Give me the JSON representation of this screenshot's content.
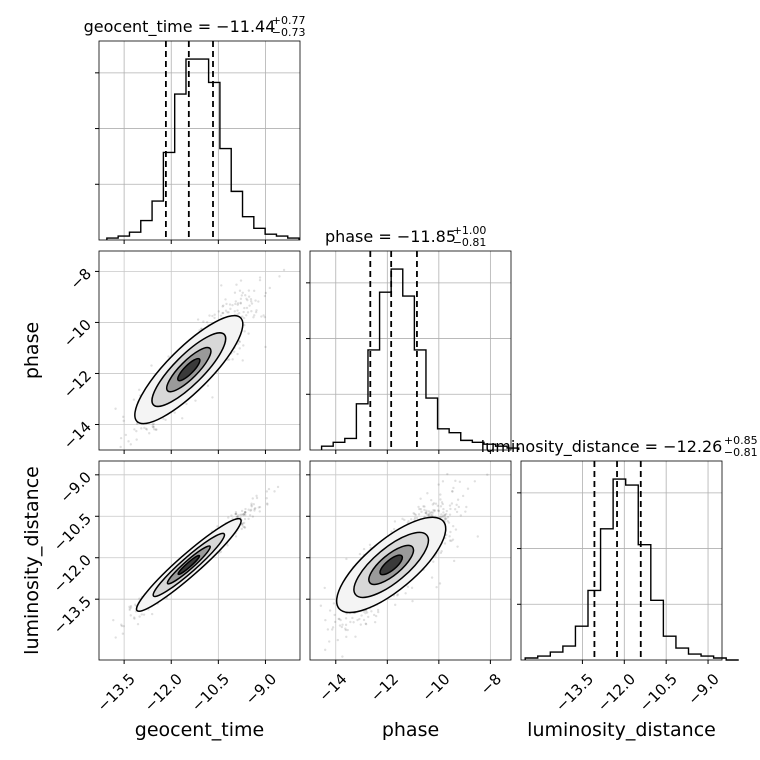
{
  "chart_data": {
    "type": "corner",
    "parameters": [
      {
        "name": "geocent_time",
        "title_prefix": "geocent_time = ",
        "median_text": "−11.44",
        "plus_text": "+0.77",
        "minus_text": "−0.73",
        "median": -11.44,
        "lower": -12.17,
        "upper": -10.67,
        "range": [
          -14.3,
          -7.9
        ],
        "ticks": [
          -13.5,
          -12.0,
          -10.5,
          -9.0
        ],
        "tick_labels": [
          "−13.5",
          "−12.0",
          "−10.5",
          "−9.0"
        ],
        "hist": {
          "bin_start": -14.05,
          "bin_width": 0.36,
          "counts": [
            1,
            2,
            4,
            10,
            20,
            45,
            75,
            93,
            93,
            81,
            47,
            25,
            12,
            6,
            3,
            2,
            1
          ]
        }
      },
      {
        "name": "phase",
        "title_prefix": "phase = ",
        "median_text": "−11.85",
        "plus_text": "+1.00",
        "minus_text": "−0.81",
        "median": -11.85,
        "lower": -12.66,
        "upper": -10.85,
        "range": [
          -15.0,
          -7.2
        ],
        "ticks": [
          -14,
          -12,
          -10,
          -8
        ],
        "tick_labels": [
          "−14",
          "−12",
          "−10",
          "−8"
        ],
        "hist": {
          "bin_start": -14.55,
          "bin_width": 0.45,
          "counts": [
            2,
            4,
            6,
            24,
            52,
            82,
            94,
            80,
            52,
            27,
            11,
            9,
            5,
            4,
            3,
            2,
            1
          ]
        }
      },
      {
        "name": "luminosity_distance",
        "title_prefix": "luminosity_distance = ",
        "median_text": "−12.26",
        "plus_text": "+0.85",
        "minus_text": "−0.81",
        "median": -12.26,
        "lower": -13.07,
        "upper": -11.41,
        "range": [
          -15.7,
          -8.5
        ],
        "ticks": [
          -13.5,
          -12.0,
          -10.5,
          -9.0
        ],
        "tick_labels": [
          "−13.5",
          "−12.0",
          "−10.5",
          "−9.0"
        ],
        "hist": {
          "bin_start": -15.55,
          "bin_width": 0.45,
          "counts": [
            1,
            2,
            4,
            7,
            17,
            35,
            66,
            91,
            88,
            58,
            30,
            12,
            6,
            3,
            2,
            1,
            0
          ]
        }
      }
    ],
    "grid": true,
    "quantile_lines": "dashed",
    "correlations": {
      "1-0": {
        "slope": 1.23,
        "sigma_x": 0.75,
        "sigma_y_resid": 0.38
      },
      "2-0": {
        "slope": 1.0,
        "sigma_x": 0.75,
        "sigma_y_resid": 0.13
      },
      "2-1": {
        "slope": 0.78,
        "sigma_x": 0.92,
        "sigma_y_resid": 0.42
      }
    }
  }
}
